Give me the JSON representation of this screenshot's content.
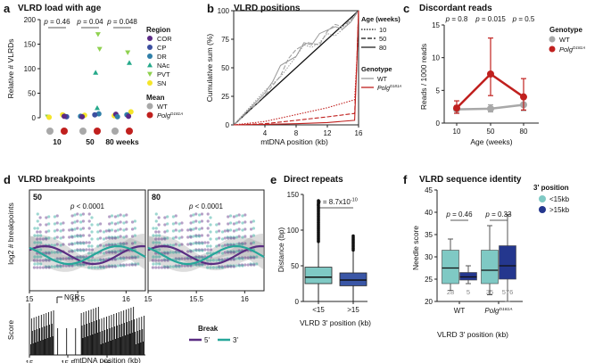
{
  "chart_data": [
    {
      "panel": "a",
      "type": "scatter",
      "title": "VLRD load with age",
      "ylabel": "Relative # VLRDs",
      "ylim": [
        0,
        200
      ],
      "yticks": [
        "0",
        "50",
        "100",
        "150",
        "200"
      ],
      "x_groups": [
        "10",
        "50",
        "80 weeks"
      ],
      "pvalues": [
        "p = 0.46",
        "p = 0.04",
        "p = 0.048"
      ],
      "legend_region_title": "Region",
      "legend_mean_title": "Mean",
      "regions": [
        {
          "name": "COR",
          "color": "#5b2a86",
          "shape": "circle"
        },
        {
          "name": "CP",
          "color": "#3b4fa0",
          "shape": "circle"
        },
        {
          "name": "DR",
          "color": "#2f7fa8",
          "shape": "circle"
        },
        {
          "name": "NAc",
          "color": "#25a98a",
          "shape": "triangle-up"
        },
        {
          "name": "PVT",
          "color": "#8fd14f",
          "shape": "triangle-down"
        },
        {
          "name": "SN",
          "color": "#f5e52a",
          "shape": "circle"
        }
      ],
      "genotypes": [
        {
          "name": "WT",
          "color": "#a8a8a8"
        },
        {
          "name": "PolgD181A",
          "color": "#c0201e"
        }
      ],
      "points": [
        {
          "g": 0,
          "geno": 0,
          "region": 4,
          "y": 2
        },
        {
          "g": 0,
          "geno": 0,
          "region": 5,
          "y": 1
        },
        {
          "g": 0,
          "geno": 1,
          "region": 3,
          "y": 4
        },
        {
          "g": 0,
          "geno": 1,
          "region": 1,
          "y": 2
        },
        {
          "g": 0,
          "geno": 1,
          "region": 5,
          "y": 6
        },
        {
          "g": 0,
          "geno": 1,
          "region": 0,
          "y": 3
        },
        {
          "g": 1,
          "geno": 0,
          "region": 5,
          "y": 5
        },
        {
          "g": 1,
          "geno": 0,
          "region": 2,
          "y": 3
        },
        {
          "g": 1,
          "geno": 0,
          "region": 0,
          "y": 2
        },
        {
          "g": 1,
          "geno": 1,
          "region": 4,
          "y": 170
        },
        {
          "g": 1,
          "geno": 1,
          "region": 4,
          "y": 140
        },
        {
          "g": 1,
          "geno": 1,
          "region": 3,
          "y": 92
        },
        {
          "g": 1,
          "geno": 1,
          "region": 3,
          "y": 20
        },
        {
          "g": 1,
          "geno": 1,
          "region": 2,
          "y": 8
        },
        {
          "g": 1,
          "geno": 1,
          "region": 1,
          "y": 6
        },
        {
          "g": 2,
          "geno": 0,
          "region": 5,
          "y": 4
        },
        {
          "g": 2,
          "geno": 0,
          "region": 0,
          "y": 7
        },
        {
          "g": 2,
          "geno": 0,
          "region": 2,
          "y": 2
        },
        {
          "g": 2,
          "geno": 1,
          "region": 4,
          "y": 133
        },
        {
          "g": 2,
          "geno": 1,
          "region": 3,
          "y": 112
        },
        {
          "g": 2,
          "geno": 1,
          "region": 5,
          "y": 12
        },
        {
          "g": 2,
          "geno": 1,
          "region": 2,
          "y": 6
        },
        {
          "g": 2,
          "geno": 1,
          "region": 0,
          "y": 3
        }
      ]
    },
    {
      "panel": "b",
      "type": "line",
      "title": "VLRD positions",
      "xlabel": "mtDNA position (kb)",
      "ylabel": "Cumulative sum (%)",
      "xlim": [
        0,
        16
      ],
      "ylim": [
        0,
        100
      ],
      "xticks": [
        "4",
        "8",
        "12",
        "16"
      ],
      "yticks": [
        "0",
        "25",
        "50",
        "75",
        "100"
      ],
      "legend_age_title": "Age (weeks)",
      "ages": [
        "10",
        "50",
        "80"
      ],
      "legend_geno_title": "Genotype",
      "genotypes": [
        "WT",
        "PolgD181A"
      ],
      "series": [
        {
          "name": "diagonal",
          "x": [
            0,
            16
          ],
          "y": [
            0,
            100
          ]
        },
        {
          "name": "WT 10",
          "x": [
            0,
            2,
            4,
            6,
            8,
            9,
            10,
            11,
            12,
            13,
            14,
            15.2,
            15.8,
            16
          ],
          "y": [
            0,
            15,
            30,
            42,
            60,
            70,
            68,
            72,
            80,
            78,
            84,
            93,
            98,
            100
          ]
        },
        {
          "name": "WT 50",
          "x": [
            0,
            2,
            4,
            6,
            7,
            8,
            9.5,
            11,
            12,
            13,
            14,
            15,
            16
          ],
          "y": [
            0,
            12,
            26,
            43,
            58,
            66,
            72,
            70,
            82,
            88,
            86,
            92,
            100
          ]
        },
        {
          "name": "WT 80",
          "x": [
            0,
            2,
            4,
            5,
            6,
            8,
            9,
            10,
            11,
            13,
            14,
            15,
            16
          ],
          "y": [
            0,
            14,
            28,
            38,
            52,
            60,
            72,
            70,
            80,
            86,
            84,
            90,
            100
          ]
        },
        {
          "name": "PolgD181A 10",
          "x": [
            0,
            4,
            8,
            12,
            15.5,
            15.8,
            16
          ],
          "y": [
            0,
            3,
            9,
            15,
            22,
            60,
            100
          ]
        },
        {
          "name": "PolgD181A 50",
          "x": [
            0,
            4,
            8,
            12,
            15.5,
            15.8,
            16
          ],
          "y": [
            0,
            1,
            4,
            7,
            10,
            60,
            100
          ]
        },
        {
          "name": "PolgD181A 80",
          "x": [
            0,
            4,
            8,
            12,
            15.5,
            15.8,
            16
          ],
          "y": [
            0,
            0.5,
            1,
            2,
            4,
            60,
            100
          ]
        }
      ]
    },
    {
      "panel": "c",
      "type": "line",
      "title": "Discordant reads",
      "xlabel": "Age (weeks)",
      "ylabel": "Reads / 1000 reads",
      "ylim": [
        0,
        15
      ],
      "yticks": [
        "0",
        "5",
        "10",
        "15"
      ],
      "categories": [
        "10",
        "50",
        "80"
      ],
      "pvalues": [
        "p = 0.8",
        "p = 0.015",
        "p = 0.5"
      ],
      "legend_title": "Genotype",
      "series": [
        {
          "name": "WT",
          "color": "#a8a8a8",
          "values": [
            2.1,
            2.2,
            2.8
          ],
          "err_low": [
            1.5,
            1.7,
            1.9
          ],
          "err_high": [
            2.7,
            2.8,
            3.7
          ]
        },
        {
          "name": "PolgD181A",
          "color": "#c0201e",
          "values": [
            2.3,
            7.5,
            4.0
          ],
          "err_low": [
            1.5,
            4.2,
            2.0
          ],
          "err_high": [
            3.4,
            13.0,
            6.8
          ]
        }
      ]
    },
    {
      "panel": "d",
      "type": "scatter",
      "title": "VLRD breakpoints",
      "ylabel": "log2 # breakpoints",
      "xlabel": "mtDNA position (kb)",
      "facets": [
        "50",
        "80"
      ],
      "pvalues": [
        "p < 0.0001",
        "p < 0.0001"
      ],
      "xlim": [
        15,
        16.2
      ],
      "xticks": [
        "15",
        "15.5",
        "16"
      ],
      "track_ylabel": "Score",
      "track_annotation": "NCR",
      "legend_title": "Break",
      "breaks": [
        {
          "name": "5'",
          "color": "#5a2d82"
        },
        {
          "name": "3'",
          "color": "#26a69a"
        }
      ]
    },
    {
      "panel": "e",
      "type": "box",
      "title": "Direct repeats",
      "xlabel": "VLRD 3' position (kb)",
      "ylabel": "Distance (bp)",
      "ylim": [
        0,
        150
      ],
      "yticks": [
        "0",
        "50",
        "100",
        "150"
      ],
      "categories": [
        "<15",
        ">15"
      ],
      "pvalue": "p = 8.7x10",
      "pvalue_exp": "-10",
      "boxes": [
        {
          "name": "<15",
          "color": "#7fc9c4",
          "min": 0,
          "q1": 25,
          "median": 34,
          "q3": 48,
          "max": 82,
          "outlier_max": 142
        },
        {
          "name": ">15",
          "color": "#3a56a6",
          "min": 0,
          "q1": 22,
          "median": 30,
          "q3": 40,
          "max": 70,
          "outlier_max": 92
        }
      ]
    },
    {
      "panel": "f",
      "type": "box",
      "title": "VLRD sequence identity",
      "xlabel": "VLRD 3' position (kb)",
      "ylabel": "Needle score",
      "ylim": [
        20,
        45
      ],
      "yticks": [
        "20",
        "25",
        "30",
        "35",
        "40",
        "45"
      ],
      "groups": [
        "WT",
        "PolgD181A"
      ],
      "pvalues": [
        "p = 0.46",
        "p = 0.33"
      ],
      "legend_title": "3' position",
      "legend": [
        {
          "name": "<15kb",
          "color": "#7fc9c4"
        },
        {
          "name": ">15kb",
          "color": "#24378e"
        }
      ],
      "boxes": [
        {
          "group": 0,
          "pos": 0,
          "color": "#7fc9c4",
          "min": 22.5,
          "q1": 24,
          "median": 27.5,
          "q3": 31.5,
          "max": 34,
          "n": "28"
        },
        {
          "group": 0,
          "pos": 1,
          "color": "#24378e",
          "min": 24,
          "q1": 24.8,
          "median": 25.5,
          "q3": 26.5,
          "max": 28,
          "n": "5"
        },
        {
          "group": 1,
          "pos": 0,
          "color": "#7fc9c4",
          "min": 21.5,
          "q1": 24,
          "median": 27,
          "q3": 31.5,
          "max": 37,
          "n": "35"
        },
        {
          "group": 1,
          "pos": 1,
          "color": "#24378e",
          "min": 20,
          "q1": 25,
          "median": 28,
          "q3": 32.5,
          "max": 39.5,
          "n": "576"
        }
      ]
    }
  ],
  "panel_letters": [
    "a",
    "b",
    "c",
    "d",
    "e",
    "f"
  ]
}
